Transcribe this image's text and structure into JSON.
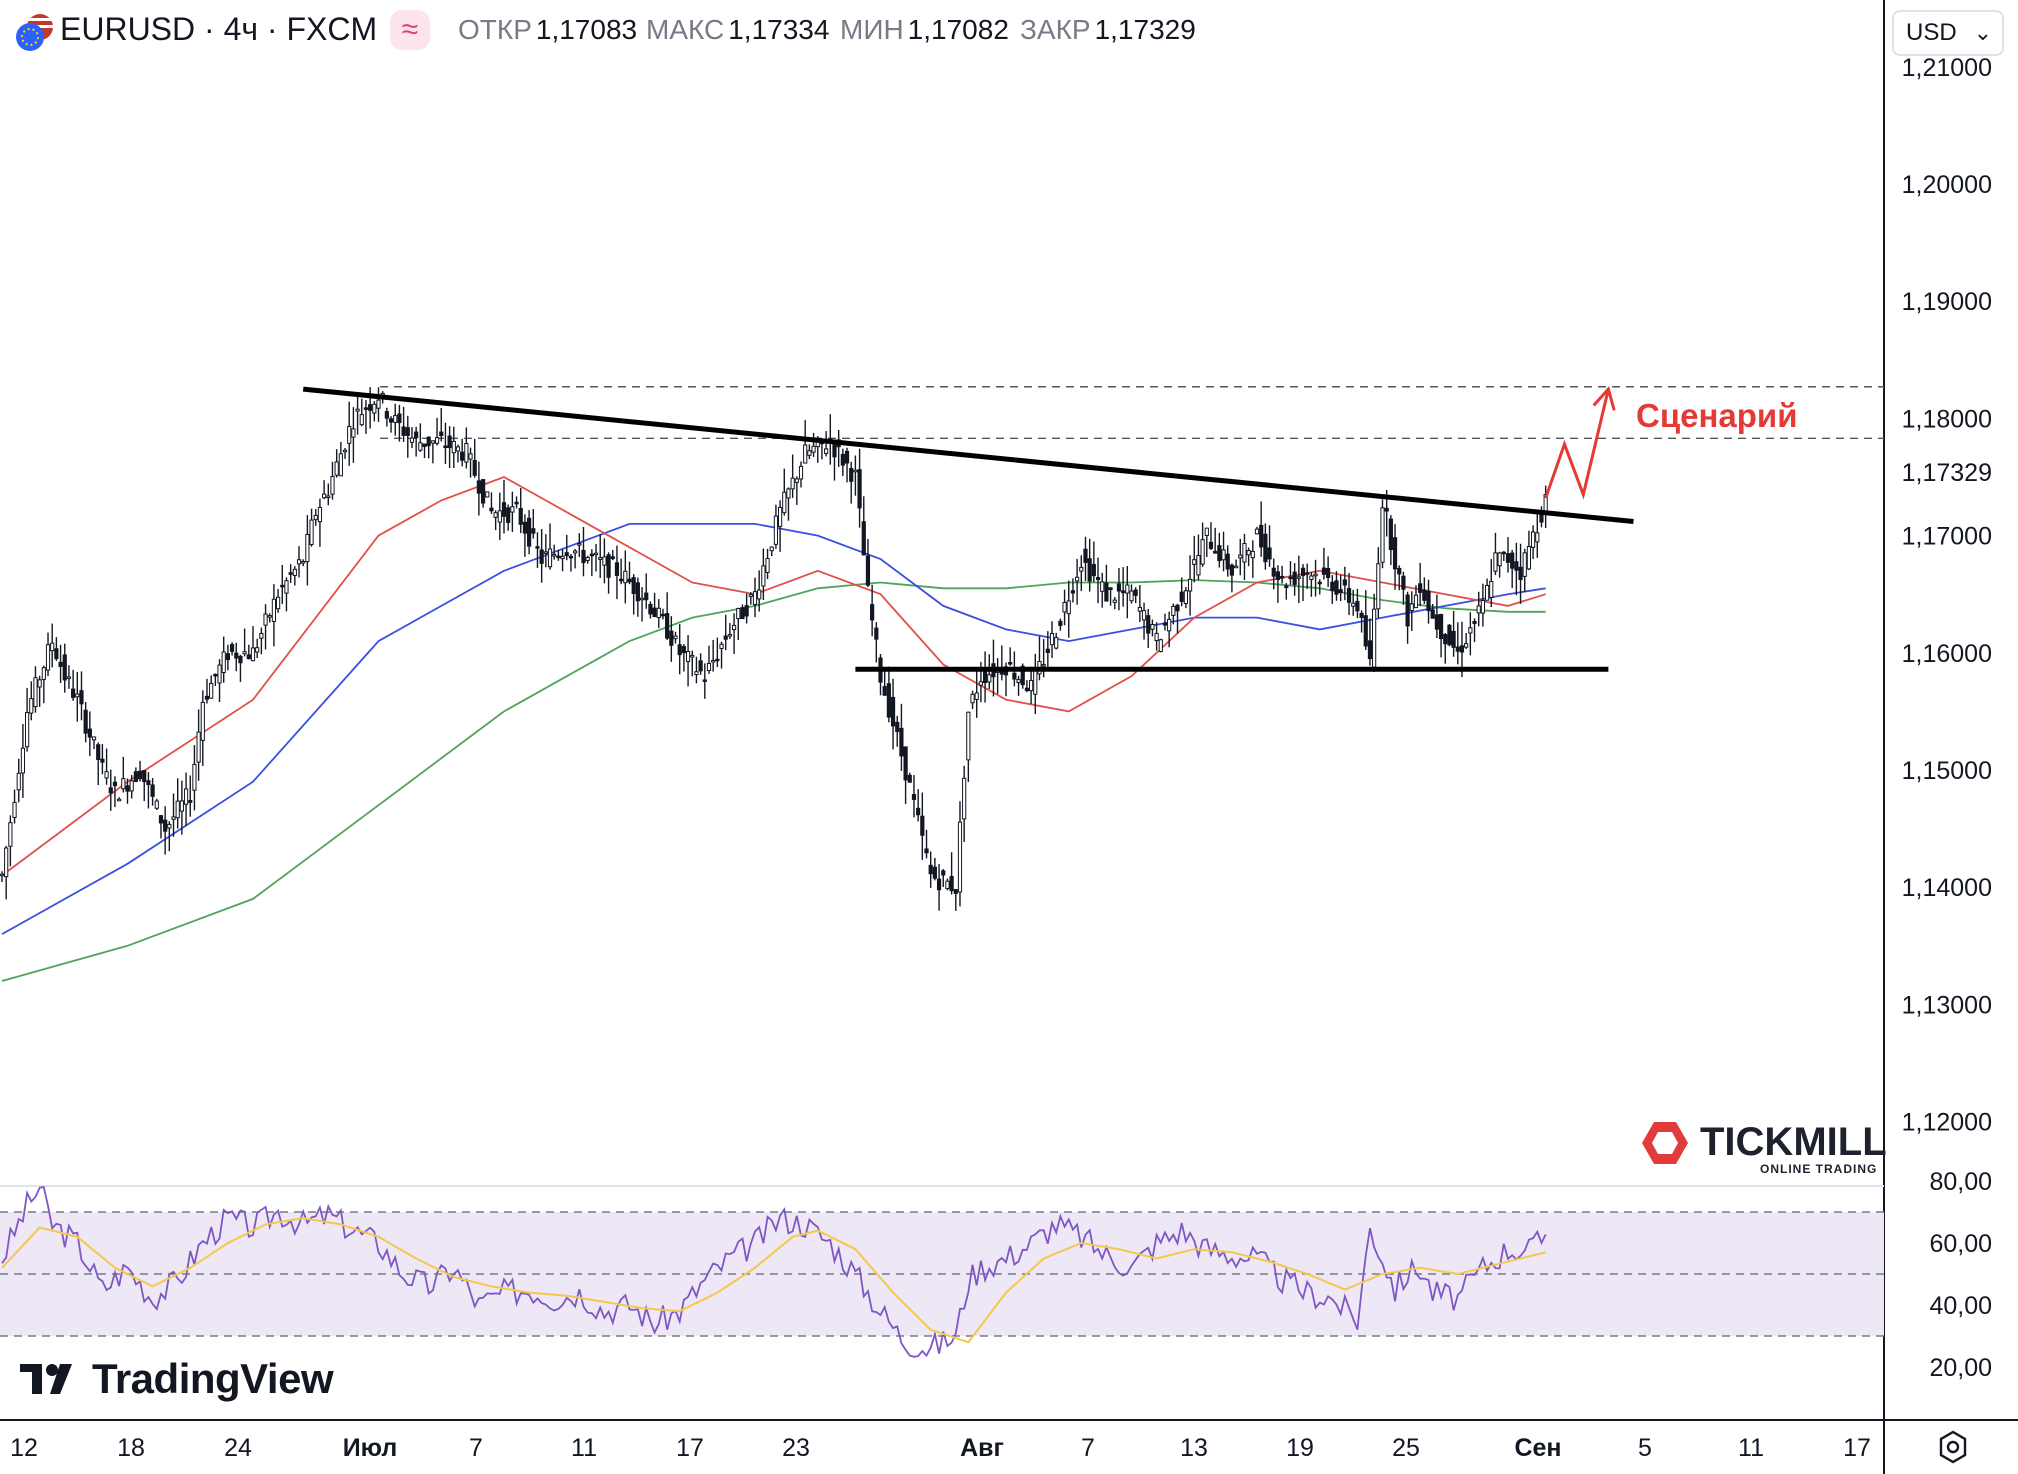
{
  "header": {
    "symbol": "EURUSD · 4ч · FXCM",
    "indicator_icon": "wave-icon",
    "open_label": "ОТКР",
    "open": "1,17083",
    "high_label": "МАКС",
    "high": "1,17334",
    "low_label": "МИН",
    "low": "1,17082",
    "close_label": "ЗАКР",
    "close": "1,17329",
    "currency": "USD"
  },
  "colors": {
    "up": "#131722",
    "down": "#131722",
    "ema_red": "#e0504a",
    "ema_blue": "#3b4fe0",
    "ema_green": "#52a35a",
    "rsi_line": "#7e57c2",
    "rsi_ma": "#f2c94c",
    "rsi_band": "#ede7f6",
    "annotation": "#e53935",
    "current_price_bg": "#131722"
  },
  "branding": {
    "tradingview": "TradingView",
    "tickmill": "TICKMILL",
    "tickmill_sub": "ONLINE TRADING"
  },
  "annotation_text": "Сценарий",
  "chart_data": {
    "type": "candlestick",
    "timeframe": "4h",
    "price_axis": {
      "ticks": [
        "1,21000",
        "1,20000",
        "1,19000",
        "1,18000",
        "1,17000",
        "1,16000",
        "1,15000",
        "1,14000",
        "1,13000",
        "1,12000"
      ],
      "tick_values": [
        1.21,
        1.2,
        1.19,
        1.18,
        1.17,
        1.16,
        1.15,
        1.14,
        1.13,
        1.12
      ],
      "current_price_label": "1,17329",
      "current_price": 1.17329
    },
    "time_axis": {
      "labels": [
        "12",
        "18",
        "24",
        "Июл",
        "7",
        "11",
        "17",
        "23",
        "Авг",
        "7",
        "13",
        "19",
        "25",
        "Сен",
        "5",
        "11",
        "17"
      ],
      "bold": [
        "Июл",
        "Авг",
        "Сен"
      ]
    },
    "price_path": [
      [
        0,
        1.141
      ],
      [
        2,
        1.155
      ],
      [
        4,
        1.161
      ],
      [
        5,
        1.158
      ],
      [
        6,
        1.156
      ],
      [
        8,
        1.15
      ],
      [
        9,
        1.148
      ],
      [
        11,
        1.15
      ],
      [
        13,
        1.145
      ],
      [
        15,
        1.148
      ],
      [
        16,
        1.156
      ],
      [
        18,
        1.16
      ],
      [
        20,
        1.16
      ],
      [
        22,
        1.165
      ],
      [
        24,
        1.168
      ],
      [
        25,
        1.172
      ],
      [
        26,
        1.174
      ],
      [
        28,
        1.18
      ],
      [
        30,
        1.182
      ],
      [
        31,
        1.18
      ],
      [
        33,
        1.178
      ],
      [
        35,
        1.178
      ],
      [
        37,
        1.177
      ],
      [
        39,
        1.172
      ],
      [
        41,
        1.172
      ],
      [
        43,
        1.168
      ],
      [
        45,
        1.169
      ],
      [
        47,
        1.168
      ],
      [
        49,
        1.167
      ],
      [
        51,
        1.165
      ],
      [
        53,
        1.162
      ],
      [
        54,
        1.16
      ],
      [
        56,
        1.158
      ],
      [
        58,
        1.162
      ],
      [
        60,
        1.165
      ],
      [
        62,
        1.172
      ],
      [
        64,
        1.177
      ],
      [
        66,
        1.178
      ],
      [
        68,
        1.175
      ],
      [
        69,
        1.165
      ],
      [
        70,
        1.158
      ],
      [
        72,
        1.15
      ],
      [
        74,
        1.141
      ],
      [
        76,
        1.14
      ],
      [
        77,
        1.155
      ],
      [
        78,
        1.158
      ],
      [
        80,
        1.159
      ],
      [
        82,
        1.157
      ],
      [
        84,
        1.162
      ],
      [
        86,
        1.168
      ],
      [
        88,
        1.165
      ],
      [
        90,
        1.165
      ],
      [
        92,
        1.161
      ],
      [
        94,
        1.165
      ],
      [
        96,
        1.17
      ],
      [
        98,
        1.167
      ],
      [
        100,
        1.17
      ],
      [
        102,
        1.166
      ],
      [
        104,
        1.167
      ],
      [
        106,
        1.166
      ],
      [
        108,
        1.164
      ],
      [
        109,
        1.159
      ],
      [
        110,
        1.173
      ],
      [
        111,
        1.168
      ],
      [
        112,
        1.163
      ],
      [
        113,
        1.166
      ],
      [
        114,
        1.163
      ],
      [
        116,
        1.16
      ],
      [
        117,
        1.162
      ],
      [
        118,
        1.164
      ],
      [
        119,
        1.168
      ],
      [
        120,
        1.168
      ],
      [
        121,
        1.167
      ],
      [
        122,
        1.17
      ],
      [
        123,
        1.173
      ]
    ],
    "ema_red": [
      [
        0,
        1.141
      ],
      [
        10,
        1.149
      ],
      [
        20,
        1.156
      ],
      [
        30,
        1.17
      ],
      [
        35,
        1.173
      ],
      [
        40,
        1.175
      ],
      [
        45,
        1.172
      ],
      [
        50,
        1.169
      ],
      [
        55,
        1.166
      ],
      [
        60,
        1.165
      ],
      [
        65,
        1.167
      ],
      [
        70,
        1.165
      ],
      [
        75,
        1.159
      ],
      [
        80,
        1.156
      ],
      [
        85,
        1.155
      ],
      [
        90,
        1.158
      ],
      [
        95,
        1.163
      ],
      [
        100,
        1.166
      ],
      [
        105,
        1.167
      ],
      [
        110,
        1.166
      ],
      [
        115,
        1.165
      ],
      [
        120,
        1.164
      ],
      [
        123,
        1.165
      ]
    ],
    "ema_blue": [
      [
        0,
        1.136
      ],
      [
        10,
        1.142
      ],
      [
        20,
        1.149
      ],
      [
        30,
        1.161
      ],
      [
        35,
        1.164
      ],
      [
        40,
        1.167
      ],
      [
        45,
        1.169
      ],
      [
        50,
        1.171
      ],
      [
        55,
        1.171
      ],
      [
        60,
        1.171
      ],
      [
        65,
        1.17
      ],
      [
        70,
        1.168
      ],
      [
        75,
        1.164
      ],
      [
        80,
        1.162
      ],
      [
        85,
        1.161
      ],
      [
        90,
        1.162
      ],
      [
        95,
        1.163
      ],
      [
        100,
        1.163
      ],
      [
        105,
        1.162
      ],
      [
        110,
        1.163
      ],
      [
        115,
        1.164
      ],
      [
        120,
        1.165
      ],
      [
        123,
        1.1655
      ]
    ],
    "ema_green": [
      [
        0,
        1.132
      ],
      [
        10,
        1.135
      ],
      [
        20,
        1.139
      ],
      [
        30,
        1.147
      ],
      [
        40,
        1.155
      ],
      [
        45,
        1.158
      ],
      [
        50,
        1.161
      ],
      [
        55,
        1.163
      ],
      [
        60,
        1.164
      ],
      [
        65,
        1.1655
      ],
      [
        70,
        1.166
      ],
      [
        75,
        1.1655
      ],
      [
        80,
        1.1655
      ],
      [
        85,
        1.166
      ],
      [
        90,
        1.166
      ],
      [
        95,
        1.1662
      ],
      [
        100,
        1.166
      ],
      [
        105,
        1.1655
      ],
      [
        110,
        1.1645
      ],
      [
        115,
        1.1638
      ],
      [
        120,
        1.1635
      ],
      [
        123,
        1.1635
      ]
    ],
    "resistance_levels": [
      1.1827,
      1.1783
    ],
    "trendline": {
      "from": [
        24,
        1.1825
      ],
      "to": [
        130,
        1.1712
      ]
    },
    "support_line": {
      "from": [
        68,
        1.1586
      ],
      "to": [
        128,
        1.1586
      ]
    },
    "scenario_arrow": [
      [
        123,
        1.1732
      ],
      [
        124.5,
        1.1778
      ],
      [
        126,
        1.1735
      ],
      [
        128,
        1.1825
      ]
    ],
    "rsi": {
      "ticks": [
        "80,00",
        "60,00",
        "40,00",
        "20,00"
      ],
      "tick_values": [
        80,
        60,
        40,
        20
      ],
      "band": [
        30,
        70
      ],
      "midline": 50,
      "path": [
        [
          0,
          55
        ],
        [
          2,
          72
        ],
        [
          3,
          78
        ],
        [
          4,
          66
        ],
        [
          6,
          60
        ],
        [
          8,
          45
        ],
        [
          10,
          52
        ],
        [
          12,
          42
        ],
        [
          14,
          48
        ],
        [
          16,
          60
        ],
        [
          18,
          68
        ],
        [
          20,
          65
        ],
        [
          22,
          70
        ],
        [
          24,
          66
        ],
        [
          26,
          69
        ],
        [
          28,
          64
        ],
        [
          30,
          60
        ],
        [
          32,
          50
        ],
        [
          34,
          46
        ],
        [
          36,
          52
        ],
        [
          38,
          40
        ],
        [
          40,
          44
        ],
        [
          42,
          45
        ],
        [
          44,
          42
        ],
        [
          46,
          44
        ],
        [
          48,
          38
        ],
        [
          50,
          40
        ],
        [
          52,
          34
        ],
        [
          54,
          38
        ],
        [
          56,
          48
        ],
        [
          58,
          55
        ],
        [
          60,
          60
        ],
        [
          62,
          68
        ],
        [
          64,
          66
        ],
        [
          66,
          60
        ],
        [
          68,
          50
        ],
        [
          70,
          38
        ],
        [
          72,
          28
        ],
        [
          74,
          26
        ],
        [
          76,
          30
        ],
        [
          77,
          48
        ],
        [
          78,
          52
        ],
        [
          80,
          55
        ],
        [
          82,
          60
        ],
        [
          84,
          66
        ],
        [
          86,
          62
        ],
        [
          88,
          56
        ],
        [
          90,
          52
        ],
        [
          92,
          60
        ],
        [
          94,
          64
        ],
        [
          96,
          58
        ],
        [
          98,
          56
        ],
        [
          100,
          55
        ],
        [
          102,
          48
        ],
        [
          104,
          44
        ],
        [
          106,
          42
        ],
        [
          108,
          35
        ],
        [
          109,
          65
        ],
        [
          110,
          55
        ],
        [
          111,
          45
        ],
        [
          112,
          50
        ],
        [
          113,
          52
        ],
        [
          114,
          44
        ],
        [
          116,
          42
        ],
        [
          118,
          52
        ],
        [
          120,
          58
        ],
        [
          122,
          58
        ],
        [
          123,
          63
        ]
      ],
      "ma_path": [
        [
          0,
          52
        ],
        [
          3,
          65
        ],
        [
          6,
          62
        ],
        [
          9,
          52
        ],
        [
          12,
          46
        ],
        [
          15,
          52
        ],
        [
          18,
          60
        ],
        [
          21,
          66
        ],
        [
          24,
          68
        ],
        [
          27,
          66
        ],
        [
          30,
          62
        ],
        [
          33,
          55
        ],
        [
          36,
          49
        ],
        [
          39,
          46
        ],
        [
          42,
          44
        ],
        [
          45,
          43
        ],
        [
          48,
          41
        ],
        [
          51,
          39
        ],
        [
          54,
          38
        ],
        [
          57,
          44
        ],
        [
          60,
          52
        ],
        [
          63,
          62
        ],
        [
          65,
          64
        ],
        [
          68,
          58
        ],
        [
          71,
          44
        ],
        [
          74,
          32
        ],
        [
          77,
          28
        ],
        [
          80,
          44
        ],
        [
          83,
          55
        ],
        [
          86,
          60
        ],
        [
          89,
          58
        ],
        [
          92,
          55
        ],
        [
          95,
          58
        ],
        [
          98,
          57
        ],
        [
          101,
          54
        ],
        [
          104,
          50
        ],
        [
          107,
          45
        ],
        [
          110,
          50
        ],
        [
          113,
          52
        ],
        [
          116,
          50
        ],
        [
          119,
          53
        ],
        [
          122,
          56
        ],
        [
          123,
          57
        ]
      ]
    }
  }
}
